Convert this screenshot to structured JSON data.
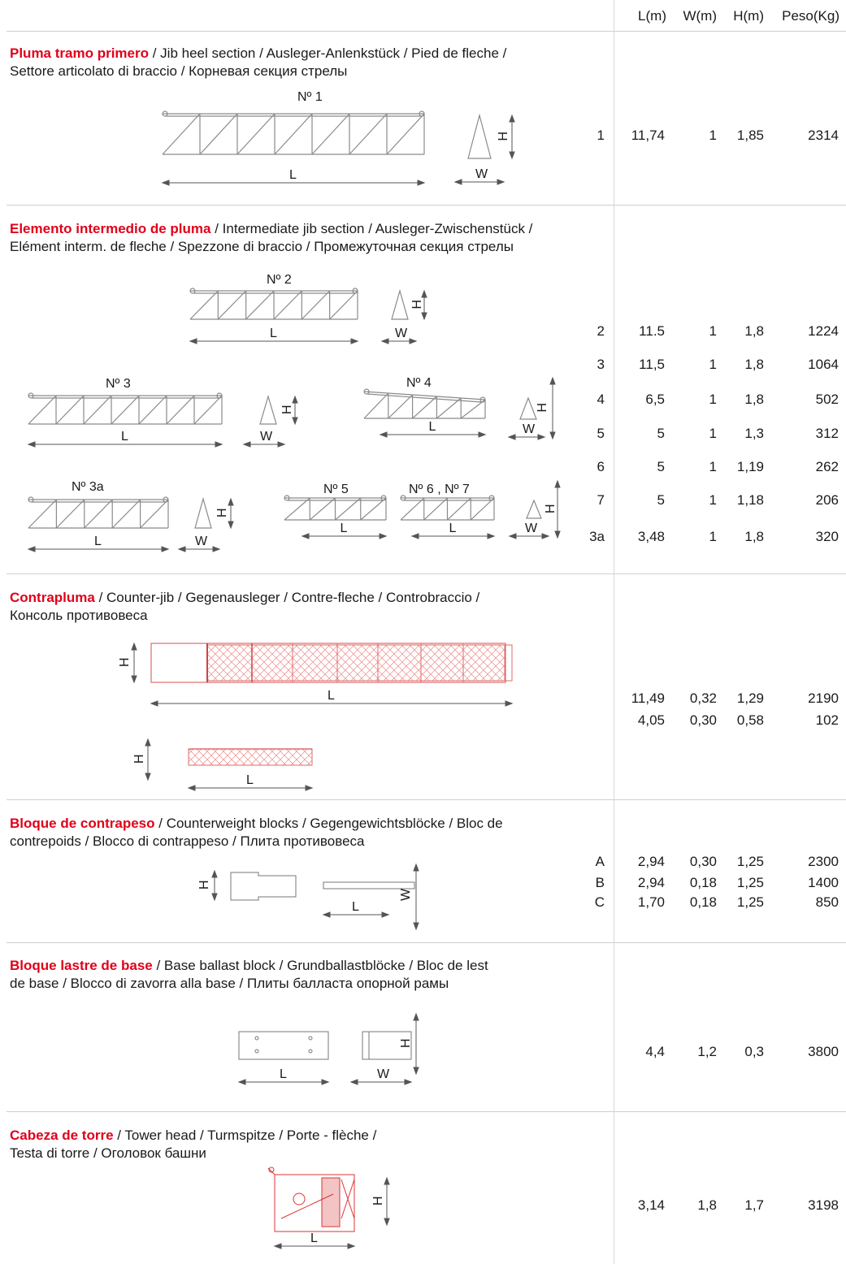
{
  "header": {
    "l": "L(m)",
    "w": "W(m)",
    "h": "H(m)",
    "peso": "Peso(Kg)"
  },
  "sections": [
    {
      "title_es": "Pluma tramo primero",
      "title_rest_1": " / Jib heel section / Ausleger-Anlenkstück / Pied de fleche /",
      "title_rest_2": "Settore articolato di braccio / Корневая секция стрелы",
      "drawings": [
        "Nº 1"
      ],
      "rows": [
        {
          "id": "1",
          "l": "11,74",
          "w": "1",
          "h": "1,85",
          "peso": "2314"
        }
      ]
    },
    {
      "title_es": "Elemento intermedio de pluma",
      "title_rest_1": " / Intermediate jib section / Ausleger-Zwischenstück /",
      "title_rest_2": "Elément interm. de fleche / Spezzone di braccio / Промежуточная секция стрелы",
      "drawings": [
        "Nº 2",
        "Nº 3",
        "Nº 4",
        "Nº 3a",
        "Nº 5",
        "Nº 6 , Nº 7"
      ],
      "rows": [
        {
          "id": "2",
          "l": "11.5",
          "w": "1",
          "h": "1,8",
          "peso": "1224"
        },
        {
          "id": "3",
          "l": "11,5",
          "w": "1",
          "h": "1,8",
          "peso": "1064"
        },
        {
          "id": "4",
          "l": "6,5",
          "w": "1",
          "h": "1,8",
          "peso": "502"
        },
        {
          "id": "5",
          "l": "5",
          "w": "1",
          "h": "1,3",
          "peso": "312"
        },
        {
          "id": "6",
          "l": "5",
          "w": "1",
          "h": "1,19",
          "peso": "262"
        },
        {
          "id": "7",
          "l": "5",
          "w": "1",
          "h": "1,18",
          "peso": "206"
        },
        {
          "id": "3a",
          "l": "3,48",
          "w": "1",
          "h": "1,8",
          "peso": "320"
        }
      ]
    },
    {
      "title_es": "Contrapluma",
      "title_rest_1": " / Counter-jib / Gegenausleger / Contre-fleche / Controbraccio /",
      "title_rest_2": "Консоль противовеса",
      "rows": [
        {
          "id": "",
          "l": "11,49",
          "w": "0,32",
          "h": "1,29",
          "peso": "2190"
        },
        {
          "id": "",
          "l": "4,05",
          "w": "0,30",
          "h": "0,58",
          "peso": "102"
        }
      ]
    },
    {
      "title_es": "Bloque de contrapeso",
      "title_rest_1": " / Counterweight blocks / Gegengewichtsblöcke / Bloc de",
      "title_rest_2": "contrepoids / Blocco di contrappeso / Плита противовеса",
      "rows": [
        {
          "id": "A",
          "l": "2,94",
          "w": "0,30",
          "h": "1,25",
          "peso": "2300"
        },
        {
          "id": "B",
          "l": "2,94",
          "w": "0,18",
          "h": "1,25",
          "peso": "1400"
        },
        {
          "id": "C",
          "l": "1,70",
          "w": "0,18",
          "h": "1,25",
          "peso": "850"
        }
      ]
    },
    {
      "title_es": "Bloque lastre de base",
      "title_rest_1": " / Base ballast block / Grundballastblöcke / Bloc de lest",
      "title_rest_2": "de base / Blocco di zavorra alla base / Плиты балласта опорной рамы",
      "rows": [
        {
          "id": "",
          "l": "4,4",
          "w": "1,2",
          "h": "0,3",
          "peso": "3800"
        }
      ]
    },
    {
      "title_es": "Cabeza de torre",
      "title_rest_1": " / Tower head / Turmspitze / Porte - flèche /",
      "title_rest_2": "Testa di torre / Оголовок башни",
      "rows": [
        {
          "id": "",
          "l": "3,14",
          "w": "1,8",
          "h": "1,7",
          "peso": "3198"
        }
      ]
    }
  ],
  "dim_labels": {
    "L": "L",
    "W": "W",
    "H": "H"
  },
  "colors": {
    "accent_red": "#e0001a",
    "line_gray": "#8a8a8a",
    "drawing_red": "#e06a6a"
  }
}
